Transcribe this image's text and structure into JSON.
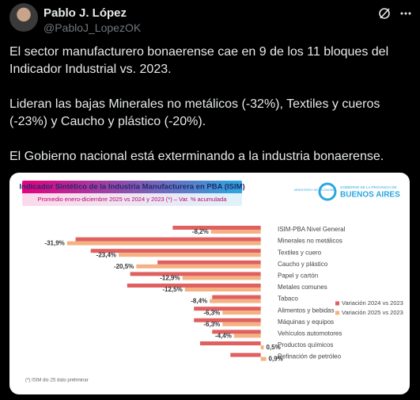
{
  "header": {
    "name": "Pablo J. López",
    "handle": "@PabloJ_LopezOK"
  },
  "tweet": {
    "paragraphs": [
      "El sector manufacturero bonaerense cae en 9 de los 11 bloques del Indicador Industrial vs. 2023.",
      "Lideran las bajas Minerales no metálicos (-32%), Textiles y cueros (-23%) y Caucho y plástico (-20%).",
      "El Gobierno nacional está exterminando a la industria bonaerense."
    ]
  },
  "logo": {
    "ministry": "MINISTERIO DE ECONOMÍA",
    "government": "GOBIERNO DE LA PROVINCIA DE",
    "province": "BUENOS AIRES"
  },
  "chart_data": {
    "type": "bar",
    "orientation": "horizontal",
    "title": "Indicador Sintético de la Industria Manufacturera en PBA (ISIM)",
    "subtitle": "Promedio enero-diciembre 2025 vs 2024 y 2023 (*) – Var. % acumulada",
    "categories": [
      "ISIM-PBA Nivel General",
      "Minerales no metálicos",
      "Textiles y cuero",
      "Caucho y plástico",
      "Papel y cartón",
      "Metales comunes",
      "Tabaco",
      "Alimentos y bebidas",
      "Máquinas y equipos",
      "Vehículos automotores",
      "Productos químicos",
      "Refinación de petróleo"
    ],
    "series": [
      {
        "name": "Variación 2024 vs 2023",
        "color": "#e06060",
        "values": [
          -14.5,
          -30.5,
          -28,
          -17,
          -21.5,
          -22,
          -8,
          -11,
          -11,
          -8,
          -10,
          -5
        ]
      },
      {
        "name": "Variación 2025 vs 2023",
        "color": "#f4b183",
        "values": [
          -8.2,
          -31.9,
          -23.4,
          -20.5,
          -12.9,
          -12.5,
          -8.4,
          -6.3,
          -6.3,
          -4.4,
          0.5,
          0.9
        ],
        "value_labels": [
          "-8,2%",
          "-31,9%",
          "-23,4%",
          "-20,5%",
          "-12,9%",
          "-12,5%",
          "-8,4%",
          "-6,3%",
          "-6,3%",
          "-4,4%",
          "0,5%",
          "0,9%"
        ]
      }
    ],
    "xlim": [
      -35,
      2
    ],
    "legend": "right",
    "footnote": "(*) ISIM dic-25 dato preliminar"
  }
}
